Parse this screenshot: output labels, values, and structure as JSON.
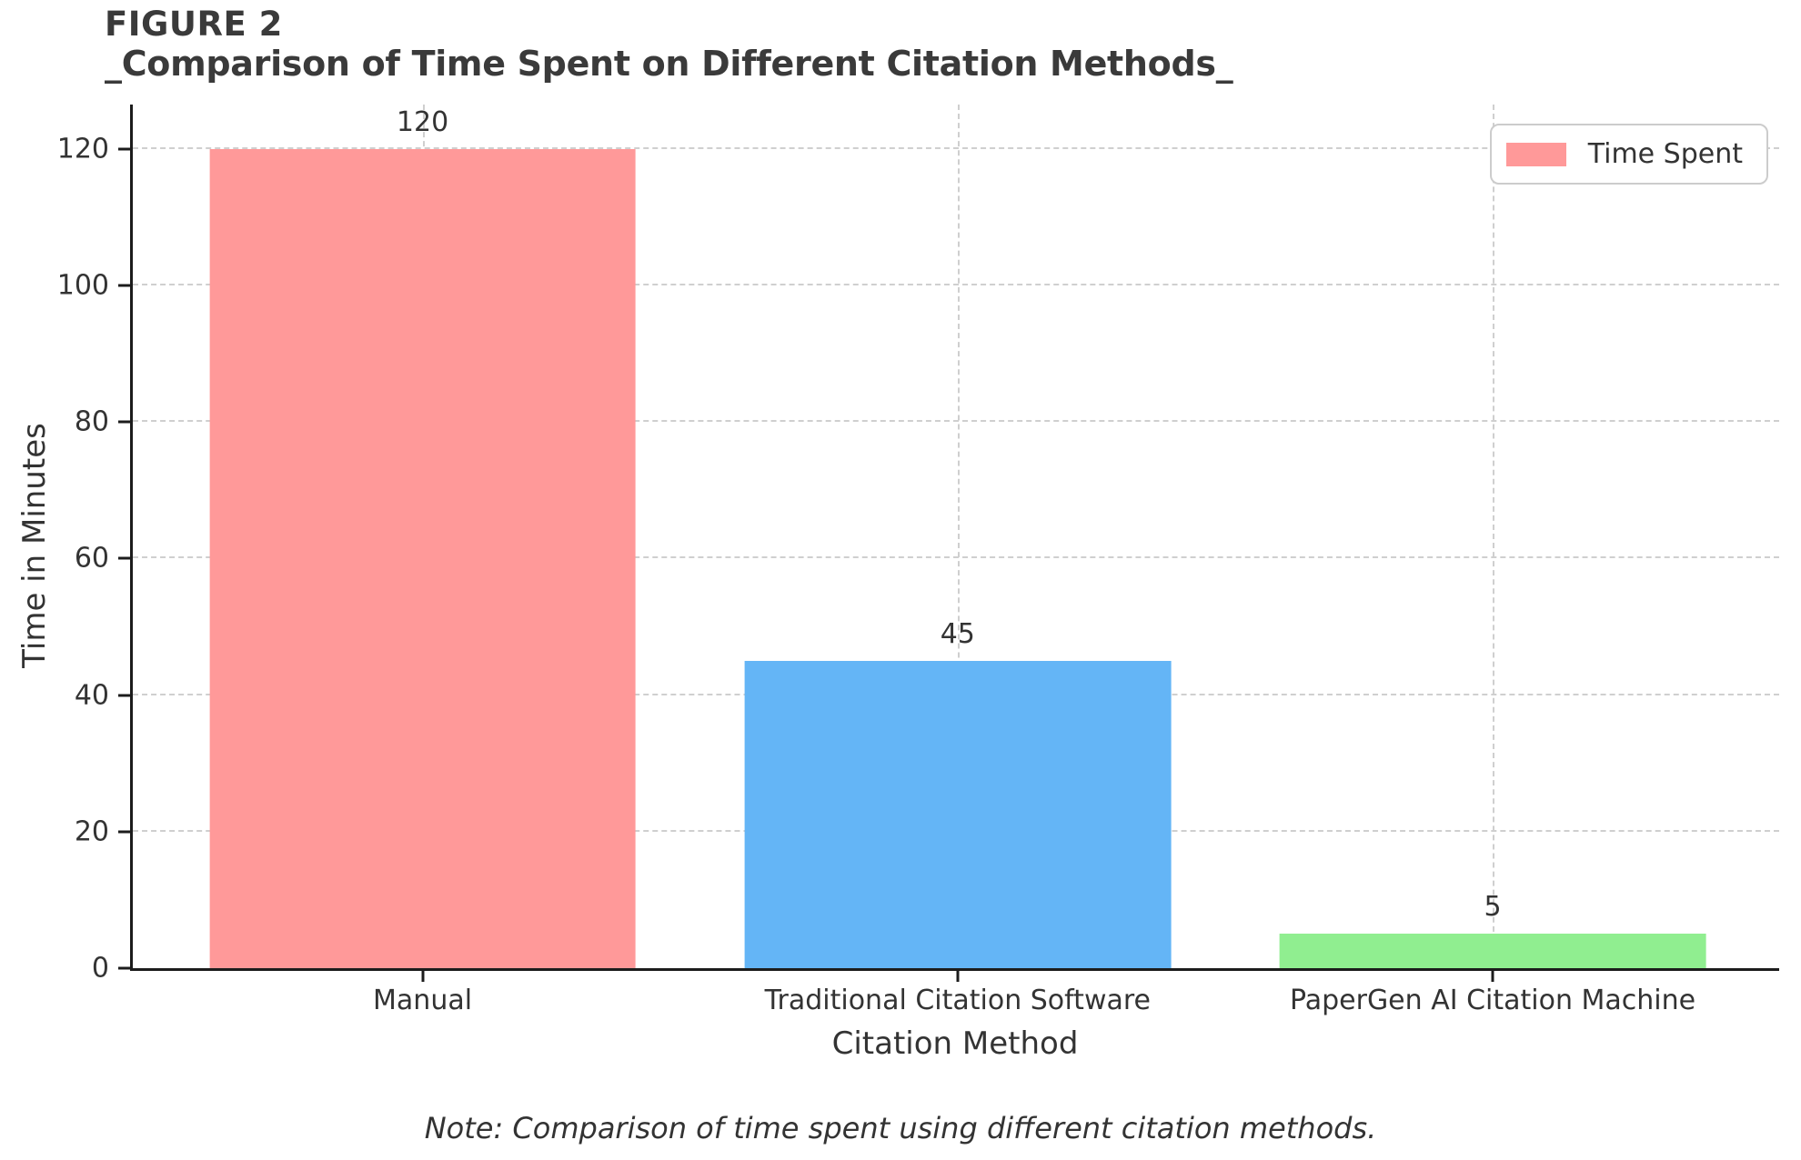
{
  "figure": {
    "label": "FIGURE 2",
    "title": "_Comparison of Time Spent on Different Citation Methods_"
  },
  "chart_data": {
    "type": "bar",
    "categories": [
      "Manual",
      "Traditional Citation Software",
      "PaperGen AI Citation Machine"
    ],
    "values": [
      120,
      45,
      5
    ],
    "bar_colors": [
      "#ff9999",
      "#64b5f6",
      "#90ee90"
    ],
    "title": "_Comparison of Time Spent on Different Citation Methods_",
    "xlabel": "Citation Method",
    "ylabel": "Time in Minutes",
    "ylim": [
      0,
      126.5
    ],
    "yticks": [
      0,
      20,
      40,
      60,
      80,
      100,
      120
    ],
    "grid": true,
    "bar_value_labels": [
      "120",
      "45",
      "5"
    ],
    "legend": {
      "label": "Time Spent",
      "color": "#ff9999",
      "position": "upper right"
    }
  },
  "note": "Note: Comparison of time spent using different citation methods."
}
